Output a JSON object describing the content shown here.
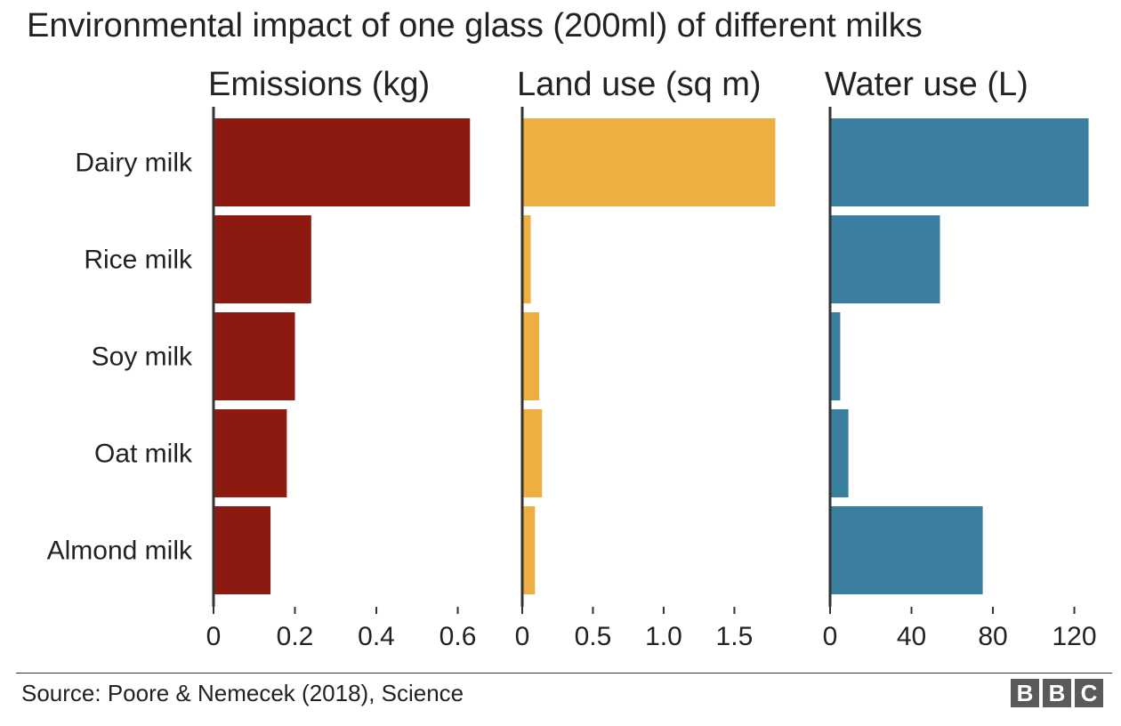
{
  "title": "Environmental impact of one glass (200ml) of different milks",
  "source": "Source: Poore & Nemecek (2018), Science",
  "logo": [
    "B",
    "B",
    "C"
  ],
  "chart_data": [
    {
      "type": "bar",
      "orientation": "horizontal",
      "title": "Emissions (kg)",
      "categories": [
        "Dairy milk",
        "Rice milk",
        "Soy milk",
        "Oat milk",
        "Almond milk"
      ],
      "values": [
        0.63,
        0.24,
        0.2,
        0.18,
        0.14
      ],
      "xlim": [
        0,
        0.66
      ],
      "ticks": [
        0,
        0.2,
        0.4,
        0.6
      ],
      "tick_labels": [
        "0",
        "0.2",
        "0.4",
        "0.6"
      ],
      "color": "#8c1a11"
    },
    {
      "type": "bar",
      "orientation": "horizontal",
      "title": "Land use (sq m)",
      "categories": [
        "Dairy milk",
        "Rice milk",
        "Soy milk",
        "Oat milk",
        "Almond milk"
      ],
      "values": [
        1.79,
        0.06,
        0.12,
        0.14,
        0.09
      ],
      "xlim": [
        0,
        1.9
      ],
      "ticks": [
        0,
        0.5,
        1.0,
        1.5
      ],
      "tick_labels": [
        "0",
        "0.5",
        "1.0",
        "1.5"
      ],
      "color": "#edaf41"
    },
    {
      "type": "bar",
      "orientation": "horizontal",
      "title": "Water use (L)",
      "categories": [
        "Dairy milk",
        "Rice milk",
        "Soy milk",
        "Oat milk",
        "Almond milk"
      ],
      "values": [
        127,
        54,
        5,
        9,
        75
      ],
      "xlim": [
        0,
        132
      ],
      "ticks": [
        0,
        40,
        80,
        120
      ],
      "tick_labels": [
        "0",
        "40",
        "80",
        "120"
      ],
      "color": "#3a7fa0"
    }
  ]
}
